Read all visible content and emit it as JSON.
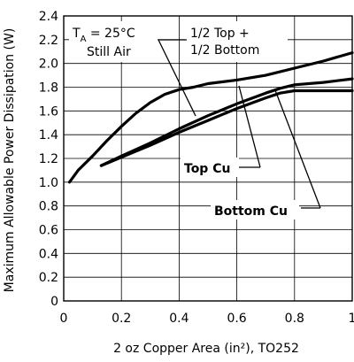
{
  "chart_data": {
    "type": "line",
    "xlabel": "2 oz Copper Area (in²), TO252",
    "ylabel": "Maximum Allowable Power Dissipation (W)",
    "xlim": [
      0,
      1
    ],
    "ylim": [
      0,
      2.4
    ],
    "x_ticks": [
      0,
      0.2,
      0.4,
      0.6,
      0.8,
      1
    ],
    "x_tick_labels": [
      "0",
      "0.2",
      "0.4",
      "0.6",
      "0.8",
      "1"
    ],
    "y_ticks": [
      0,
      0.2,
      0.4,
      0.6,
      0.8,
      1.0,
      1.2,
      1.4,
      1.6,
      1.8,
      2.0,
      2.2,
      2.4
    ],
    "y_tick_labels": [
      "0",
      "0.2",
      "0.4",
      "0.6",
      "0.8",
      "1.0",
      "1.2",
      "1.4",
      "1.6",
      "1.8",
      "2.0",
      "2.2",
      "2.4"
    ],
    "grid": true,
    "annotation_ta": "T",
    "annotation_ta_sub": "A",
    "annotation_ta_value": " = 25°C",
    "annotation_air": "Still Air",
    "series": [
      {
        "name": "1/2 Top + 1/2 Bottom",
        "label_lines": [
          "1/2 Top +",
          "1/2 Bottom"
        ],
        "x": [
          0.02,
          0.05,
          0.1,
          0.15,
          0.2,
          0.25,
          0.3,
          0.35,
          0.4,
          0.45,
          0.5,
          0.6,
          0.7,
          0.8,
          0.9,
          1.0
        ],
        "y": [
          1.0,
          1.1,
          1.22,
          1.35,
          1.47,
          1.58,
          1.67,
          1.74,
          1.78,
          1.8,
          1.83,
          1.86,
          1.9,
          1.96,
          2.02,
          2.09
        ]
      },
      {
        "name": "Top Cu",
        "label_lines": [
          "Top Cu"
        ],
        "x": [
          0.13,
          0.2,
          0.3,
          0.4,
          0.5,
          0.6,
          0.7,
          0.75,
          0.8,
          0.9,
          1.0
        ],
        "y": [
          1.14,
          1.22,
          1.33,
          1.45,
          1.56,
          1.66,
          1.75,
          1.79,
          1.82,
          1.84,
          1.87
        ]
      },
      {
        "name": "Bottom Cu",
        "label_lines": [
          "Bottom Cu"
        ],
        "x": [
          0.13,
          0.2,
          0.3,
          0.4,
          0.5,
          0.6,
          0.7,
          0.75,
          0.8,
          0.9,
          1.0
        ],
        "y": [
          1.14,
          1.21,
          1.31,
          1.42,
          1.52,
          1.62,
          1.71,
          1.75,
          1.77,
          1.77,
          1.77
        ]
      }
    ]
  }
}
